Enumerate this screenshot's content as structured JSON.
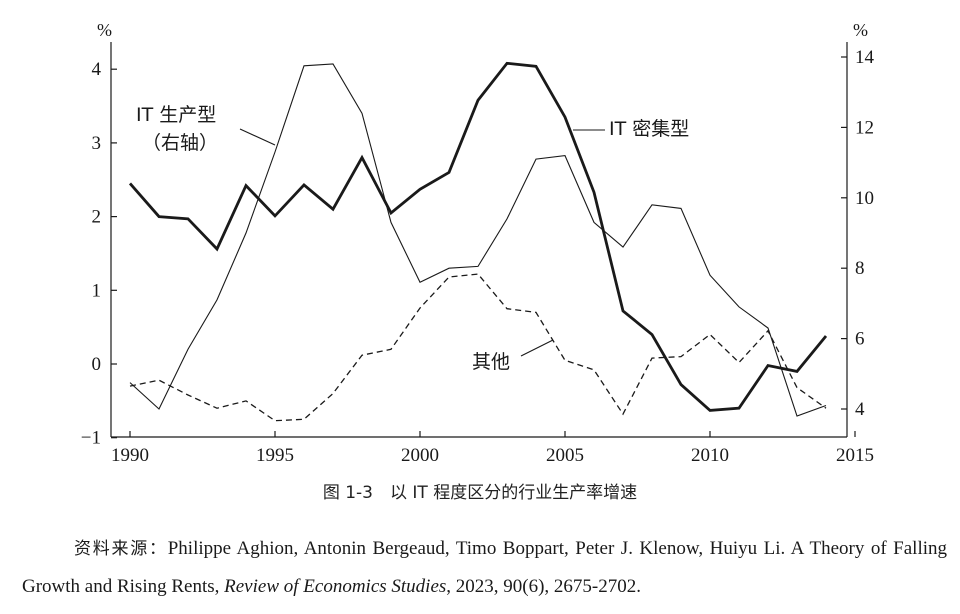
{
  "chart_data": {
    "type": "line",
    "left_axis_unit": "%",
    "right_axis_unit": "%",
    "x_ticks": [
      1990,
      1995,
      2000,
      2005,
      2010,
      2015
    ],
    "y_left_ticks": [
      -1,
      0,
      1,
      2,
      3,
      4
    ],
    "y_right_ticks": [
      4,
      6,
      8,
      10,
      12,
      14
    ],
    "xlim": [
      1990,
      2015
    ],
    "ylim_left": [
      -1,
      4.25
    ],
    "ylim_right": [
      3.1,
      14
    ],
    "series": [
      {
        "name": "IT 密集型",
        "axis": "left",
        "style": "bold-solid",
        "x": [
          1990,
          1991,
          1992,
          1993,
          1994,
          1995,
          1996,
          1997,
          1998,
          1999,
          2000,
          2001,
          2002,
          2003,
          2004,
          2005,
          2006,
          2007,
          2008,
          2009,
          2010,
          2011,
          2012,
          2013,
          2014
        ],
        "values": [
          2.45,
          2.0,
          1.97,
          1.56,
          2.42,
          2.01,
          2.43,
          2.1,
          2.8,
          2.05,
          2.37,
          2.6,
          3.58,
          4.08,
          4.04,
          3.35,
          2.33,
          0.72,
          0.4,
          -0.28,
          -0.63,
          -0.6,
          -0.02,
          -0.1,
          0.38
        ]
      },
      {
        "name": "IT 生产型（右轴）",
        "axis": "right",
        "style": "thin-solid",
        "x": [
          1990,
          1991,
          1992,
          1993,
          1994,
          1995,
          1996,
          1997,
          1998,
          1999,
          2000,
          2001,
          2002,
          2003,
          2004,
          2005,
          2006,
          2007,
          2008,
          2009,
          2010,
          2011,
          2012,
          2013,
          2014
        ],
        "values": [
          4.75,
          4.0,
          5.7,
          7.1,
          9.0,
          11.3,
          13.75,
          13.8,
          12.4,
          9.3,
          7.6,
          8.0,
          8.05,
          9.4,
          11.1,
          11.2,
          9.3,
          8.6,
          9.8,
          9.7,
          7.8,
          6.9,
          6.3,
          3.8,
          4.1
        ]
      },
      {
        "name": "其他",
        "axis": "left",
        "style": "dashed",
        "x": [
          1990,
          1991,
          1992,
          1993,
          1994,
          1995,
          1996,
          1997,
          1998,
          1999,
          2000,
          2001,
          2002,
          2003,
          2004,
          2005,
          2006,
          2007,
          2008,
          2009,
          2010,
          2011,
          2012,
          2013,
          2014
        ],
        "values": [
          -0.3,
          -0.22,
          -0.42,
          -0.6,
          -0.5,
          -0.77,
          -0.75,
          -0.4,
          0.12,
          0.2,
          0.76,
          1.18,
          1.22,
          0.75,
          0.7,
          0.05,
          -0.08,
          -0.68,
          0.08,
          0.1,
          0.4,
          0.02,
          0.45,
          -0.32,
          -0.6
        ]
      }
    ],
    "annotations": {
      "it_producing_line1": "IT 生产型",
      "it_producing_line2": "（右轴）",
      "it_intensive": "IT 密集型",
      "other": "其他"
    }
  },
  "caption": "图 1-3　以 IT 程度区分的行业生产率增速",
  "source": {
    "label": "资料来源：",
    "text_plain": "Philippe Aghion, Antonin Bergeaud, Timo Boppart, Peter J. Klenow, Huiyu Li. A Theory of Falling Growth and Rising Rents, ",
    "journal": "Review of Economics Studies",
    "text_end": ", 2023, 90(6), 2675-2702."
  }
}
